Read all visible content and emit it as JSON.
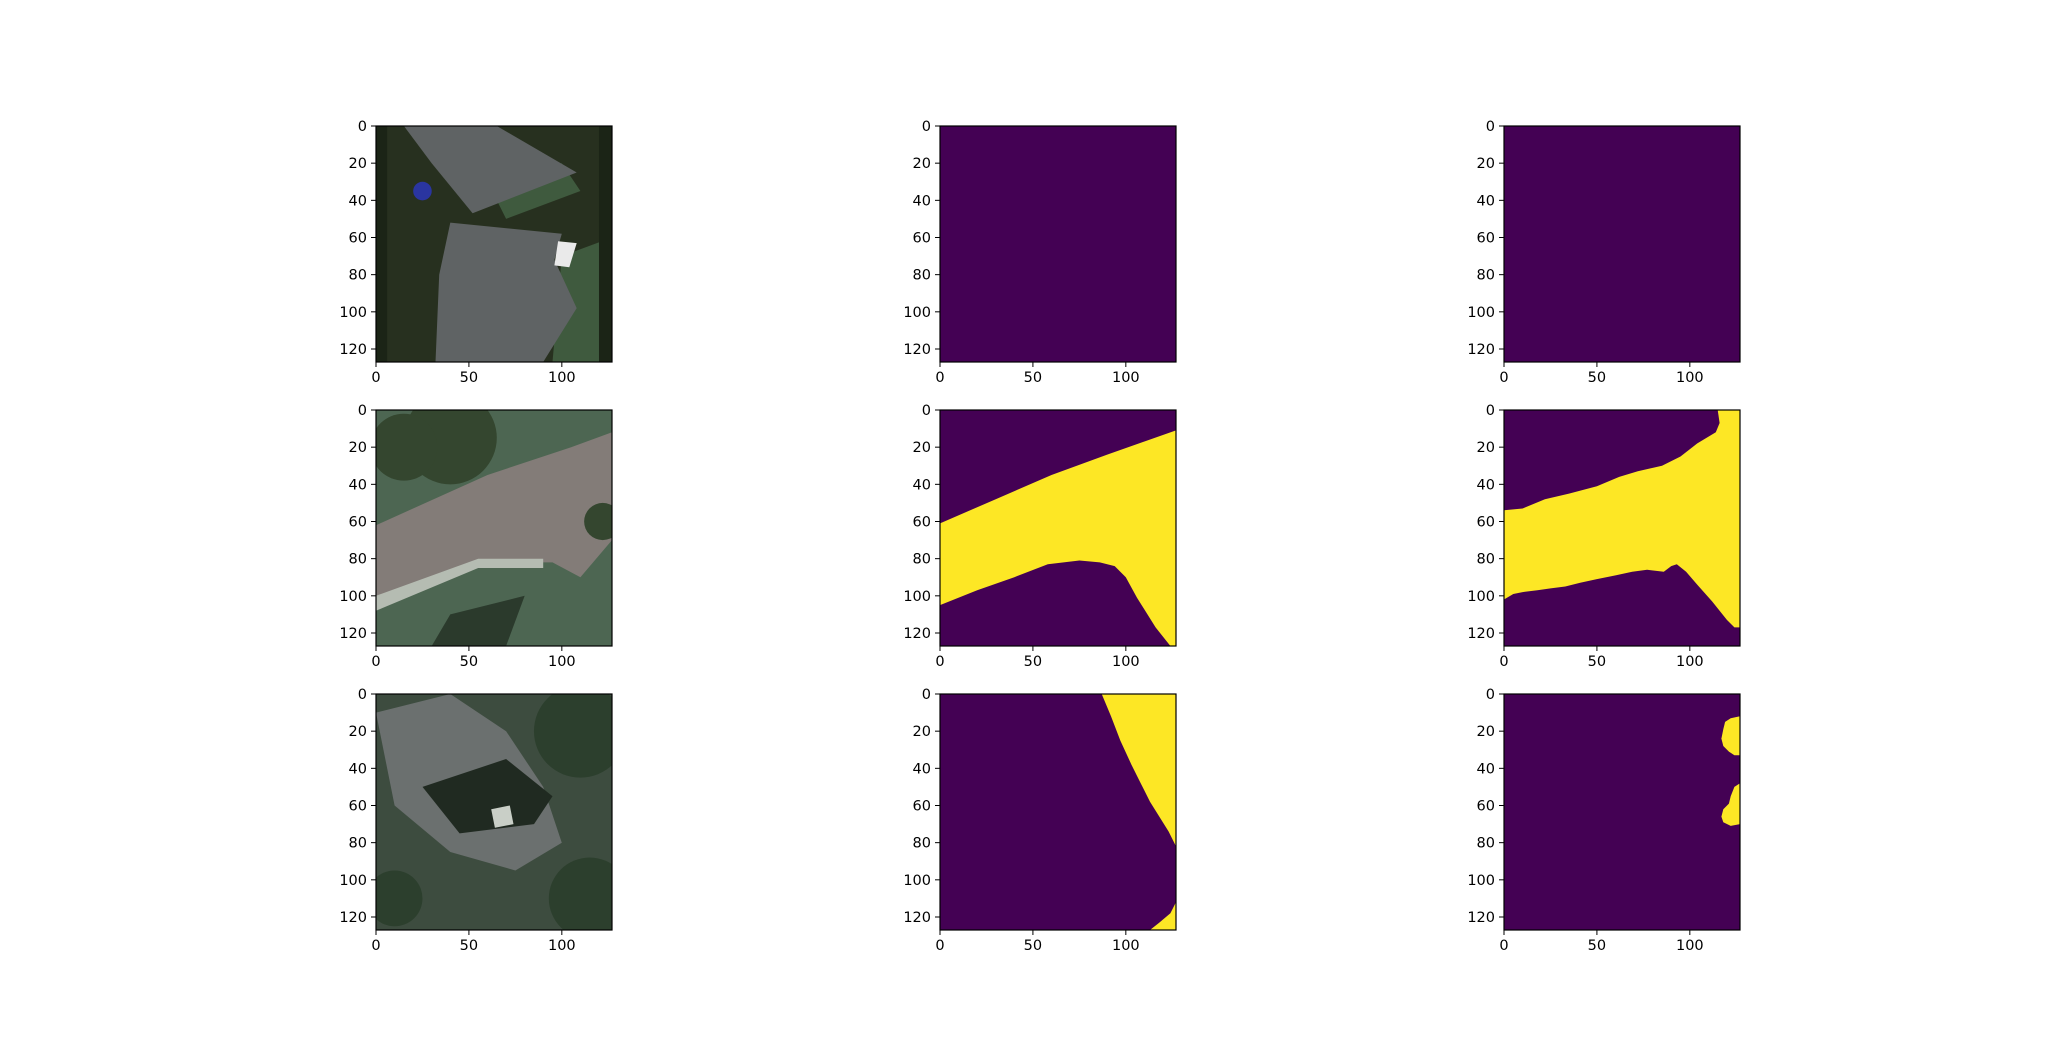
{
  "figure": {
    "grid_rows": 3,
    "grid_cols": 3,
    "colors": {
      "viridis_low": "#440154",
      "viridis_high": "#fde725",
      "axes_edge": "#000000",
      "background": "#ffffff"
    }
  },
  "chart_data": [
    {
      "type": "heatmap",
      "image_content": "aerial-photo: houses-with-dark-roofs",
      "row": 0,
      "col": 0,
      "xlim": [
        0,
        127
      ],
      "ylim": [
        127,
        0
      ],
      "grid": false,
      "xticks": [
        0,
        50,
        100
      ],
      "yticks": [
        0,
        20,
        40,
        60,
        80,
        100,
        120
      ],
      "xtick_labels": [
        "0",
        "50",
        "100"
      ],
      "ytick_labels": [
        "0",
        "20",
        "40",
        "60",
        "80",
        "100",
        "120"
      ],
      "photo_palette": {
        "ground": "#27301f",
        "roof": "#5f6364",
        "lawn": "#3f5a3e",
        "tree": "#1b2416",
        "highlight": "#eaeaea",
        "car": "#2a35a0"
      }
    },
    {
      "type": "heatmap",
      "image_content": "mask: all-background",
      "row": 0,
      "col": 1,
      "xlim": [
        0,
        127
      ],
      "ylim": [
        127,
        0
      ],
      "grid": false,
      "xticks": [
        0,
        50,
        100
      ],
      "yticks": [
        0,
        20,
        40,
        60,
        80,
        100,
        120
      ],
      "xtick_labels": [
        "0",
        "50",
        "100"
      ],
      "ytick_labels": [
        "0",
        "20",
        "40",
        "60",
        "80",
        "100",
        "120"
      ],
      "foreground_regions": []
    },
    {
      "type": "heatmap",
      "image_content": "mask: all-background",
      "row": 0,
      "col": 2,
      "xlim": [
        0,
        127
      ],
      "ylim": [
        127,
        0
      ],
      "grid": false,
      "xticks": [
        0,
        50,
        100
      ],
      "yticks": [
        0,
        20,
        40,
        60,
        80,
        100,
        120
      ],
      "xtick_labels": [
        "0",
        "50",
        "100"
      ],
      "ytick_labels": [
        "0",
        "20",
        "40",
        "60",
        "80",
        "100",
        "120"
      ],
      "foreground_regions": []
    },
    {
      "type": "heatmap",
      "image_content": "aerial-photo: road-intersection",
      "row": 1,
      "col": 0,
      "xlim": [
        0,
        127
      ],
      "ylim": [
        127,
        0
      ],
      "grid": false,
      "xticks": [
        0,
        50,
        100
      ],
      "yticks": [
        0,
        20,
        40,
        60,
        80,
        100,
        120
      ],
      "xtick_labels": [
        "0",
        "50",
        "100"
      ],
      "ytick_labels": [
        "0",
        "20",
        "40",
        "60",
        "80",
        "100",
        "120"
      ],
      "photo_palette": {
        "road": "#837c78",
        "lawn": "#4d6652",
        "tree": "#34462f",
        "curb": "#b5bcb2",
        "shadow": "#2b3a2c"
      }
    },
    {
      "type": "heatmap",
      "image_content": "mask: road",
      "row": 1,
      "col": 1,
      "xlim": [
        0,
        127
      ],
      "ylim": [
        127,
        0
      ],
      "grid": false,
      "xticks": [
        0,
        50,
        100
      ],
      "yticks": [
        0,
        20,
        40,
        60,
        80,
        100,
        120
      ],
      "xtick_labels": [
        "0",
        "50",
        "100"
      ],
      "ytick_labels": [
        "0",
        "20",
        "40",
        "60",
        "80",
        "100",
        "120"
      ],
      "foreground_regions": [
        [
          [
            0,
            61
          ],
          [
            30,
            48
          ],
          [
            60,
            35
          ],
          [
            90,
            24
          ],
          [
            127,
            11
          ],
          [
            127,
            127
          ],
          [
            124,
            127
          ],
          [
            116,
            117
          ],
          [
            106,
            101
          ],
          [
            100,
            90
          ],
          [
            94,
            84
          ],
          [
            86,
            82
          ],
          [
            75,
            81
          ],
          [
            58,
            83
          ],
          [
            40,
            90
          ],
          [
            20,
            97
          ],
          [
            0,
            105
          ]
        ]
      ]
    },
    {
      "type": "heatmap",
      "image_content": "mask: road-prediction",
      "row": 1,
      "col": 2,
      "xlim": [
        0,
        127
      ],
      "ylim": [
        127,
        0
      ],
      "grid": false,
      "xticks": [
        0,
        50,
        100
      ],
      "yticks": [
        0,
        20,
        40,
        60,
        80,
        100,
        120
      ],
      "xtick_labels": [
        "0",
        "50",
        "100"
      ],
      "ytick_labels": [
        "0",
        "20",
        "40",
        "60",
        "80",
        "100",
        "120"
      ],
      "foreground_regions": [
        [
          [
            0,
            54
          ],
          [
            10,
            53
          ],
          [
            22,
            48
          ],
          [
            35,
            45
          ],
          [
            50,
            41
          ],
          [
            62,
            36
          ],
          [
            72,
            33
          ],
          [
            85,
            30
          ],
          [
            95,
            25
          ],
          [
            104,
            18
          ],
          [
            114,
            12
          ],
          [
            116,
            7
          ],
          [
            115,
            0
          ],
          [
            127,
            0
          ],
          [
            127,
            117
          ],
          [
            124,
            117
          ],
          [
            120,
            113
          ],
          [
            112,
            103
          ],
          [
            104,
            94
          ],
          [
            98,
            87
          ],
          [
            93,
            83
          ],
          [
            90,
            84
          ],
          [
            86,
            87
          ],
          [
            77,
            86
          ],
          [
            69,
            87
          ],
          [
            60,
            89
          ],
          [
            50,
            91
          ],
          [
            41,
            93
          ],
          [
            33,
            95
          ],
          [
            25,
            96
          ],
          [
            18,
            97
          ],
          [
            10,
            98
          ],
          [
            5,
            99
          ],
          [
            0,
            102
          ]
        ]
      ]
    },
    {
      "type": "heatmap",
      "image_content": "aerial-photo: houses-and-trees",
      "row": 2,
      "col": 0,
      "xlim": [
        0,
        127
      ],
      "ylim": [
        127,
        0
      ],
      "grid": false,
      "xticks": [
        0,
        50,
        100
      ],
      "yticks": [
        0,
        20,
        40,
        60,
        80,
        100,
        120
      ],
      "xtick_labels": [
        "0",
        "50",
        "100"
      ],
      "ytick_labels": [
        "0",
        "20",
        "40",
        "60",
        "80",
        "100",
        "120"
      ],
      "photo_palette": {
        "ground": "#3d4c3f",
        "roof": "#6b706f",
        "tree": "#2c3f2d",
        "shadow": "#202a21",
        "highlight": "#c9cfc7"
      }
    },
    {
      "type": "heatmap",
      "image_content": "mask: road",
      "row": 2,
      "col": 1,
      "xlim": [
        0,
        127
      ],
      "ylim": [
        127,
        0
      ],
      "grid": false,
      "xticks": [
        0,
        50,
        100
      ],
      "yticks": [
        0,
        20,
        40,
        60,
        80,
        100,
        120
      ],
      "xtick_labels": [
        "0",
        "50",
        "100"
      ],
      "ytick_labels": [
        "0",
        "20",
        "40",
        "60",
        "80",
        "100",
        "120"
      ],
      "foreground_regions": [
        [
          [
            87,
            0
          ],
          [
            127,
            0
          ],
          [
            127,
            82
          ],
          [
            123,
            74
          ],
          [
            118,
            66
          ],
          [
            113,
            58
          ],
          [
            108,
            48
          ],
          [
            103,
            38
          ],
          [
            97,
            25
          ],
          [
            92,
            12
          ]
        ],
        [
          [
            127,
            112
          ],
          [
            124,
            118
          ],
          [
            118,
            123
          ],
          [
            113,
            127
          ],
          [
            127,
            127
          ]
        ]
      ]
    },
    {
      "type": "heatmap",
      "image_content": "mask: road-prediction",
      "row": 2,
      "col": 2,
      "xlim": [
        0,
        127
      ],
      "ylim": [
        127,
        0
      ],
      "grid": false,
      "xticks": [
        0,
        50,
        100
      ],
      "yticks": [
        0,
        20,
        40,
        60,
        80,
        100,
        120
      ],
      "xtick_labels": [
        "0",
        "50",
        "100"
      ],
      "ytick_labels": [
        "0",
        "20",
        "40",
        "60",
        "80",
        "100",
        "120"
      ],
      "foreground_regions": [
        [
          [
            127,
            12
          ],
          [
            122,
            13
          ],
          [
            119,
            15
          ],
          [
            118,
            19
          ],
          [
            117,
            24
          ],
          [
            118,
            28
          ],
          [
            121,
            31
          ],
          [
            124,
            33
          ],
          [
            127,
            33
          ]
        ],
        [
          [
            127,
            48
          ],
          [
            124,
            50
          ],
          [
            122,
            55
          ],
          [
            121,
            59
          ],
          [
            118,
            62
          ],
          [
            117,
            66
          ],
          [
            118,
            69
          ],
          [
            122,
            71
          ],
          [
            127,
            70
          ]
        ]
      ]
    }
  ]
}
